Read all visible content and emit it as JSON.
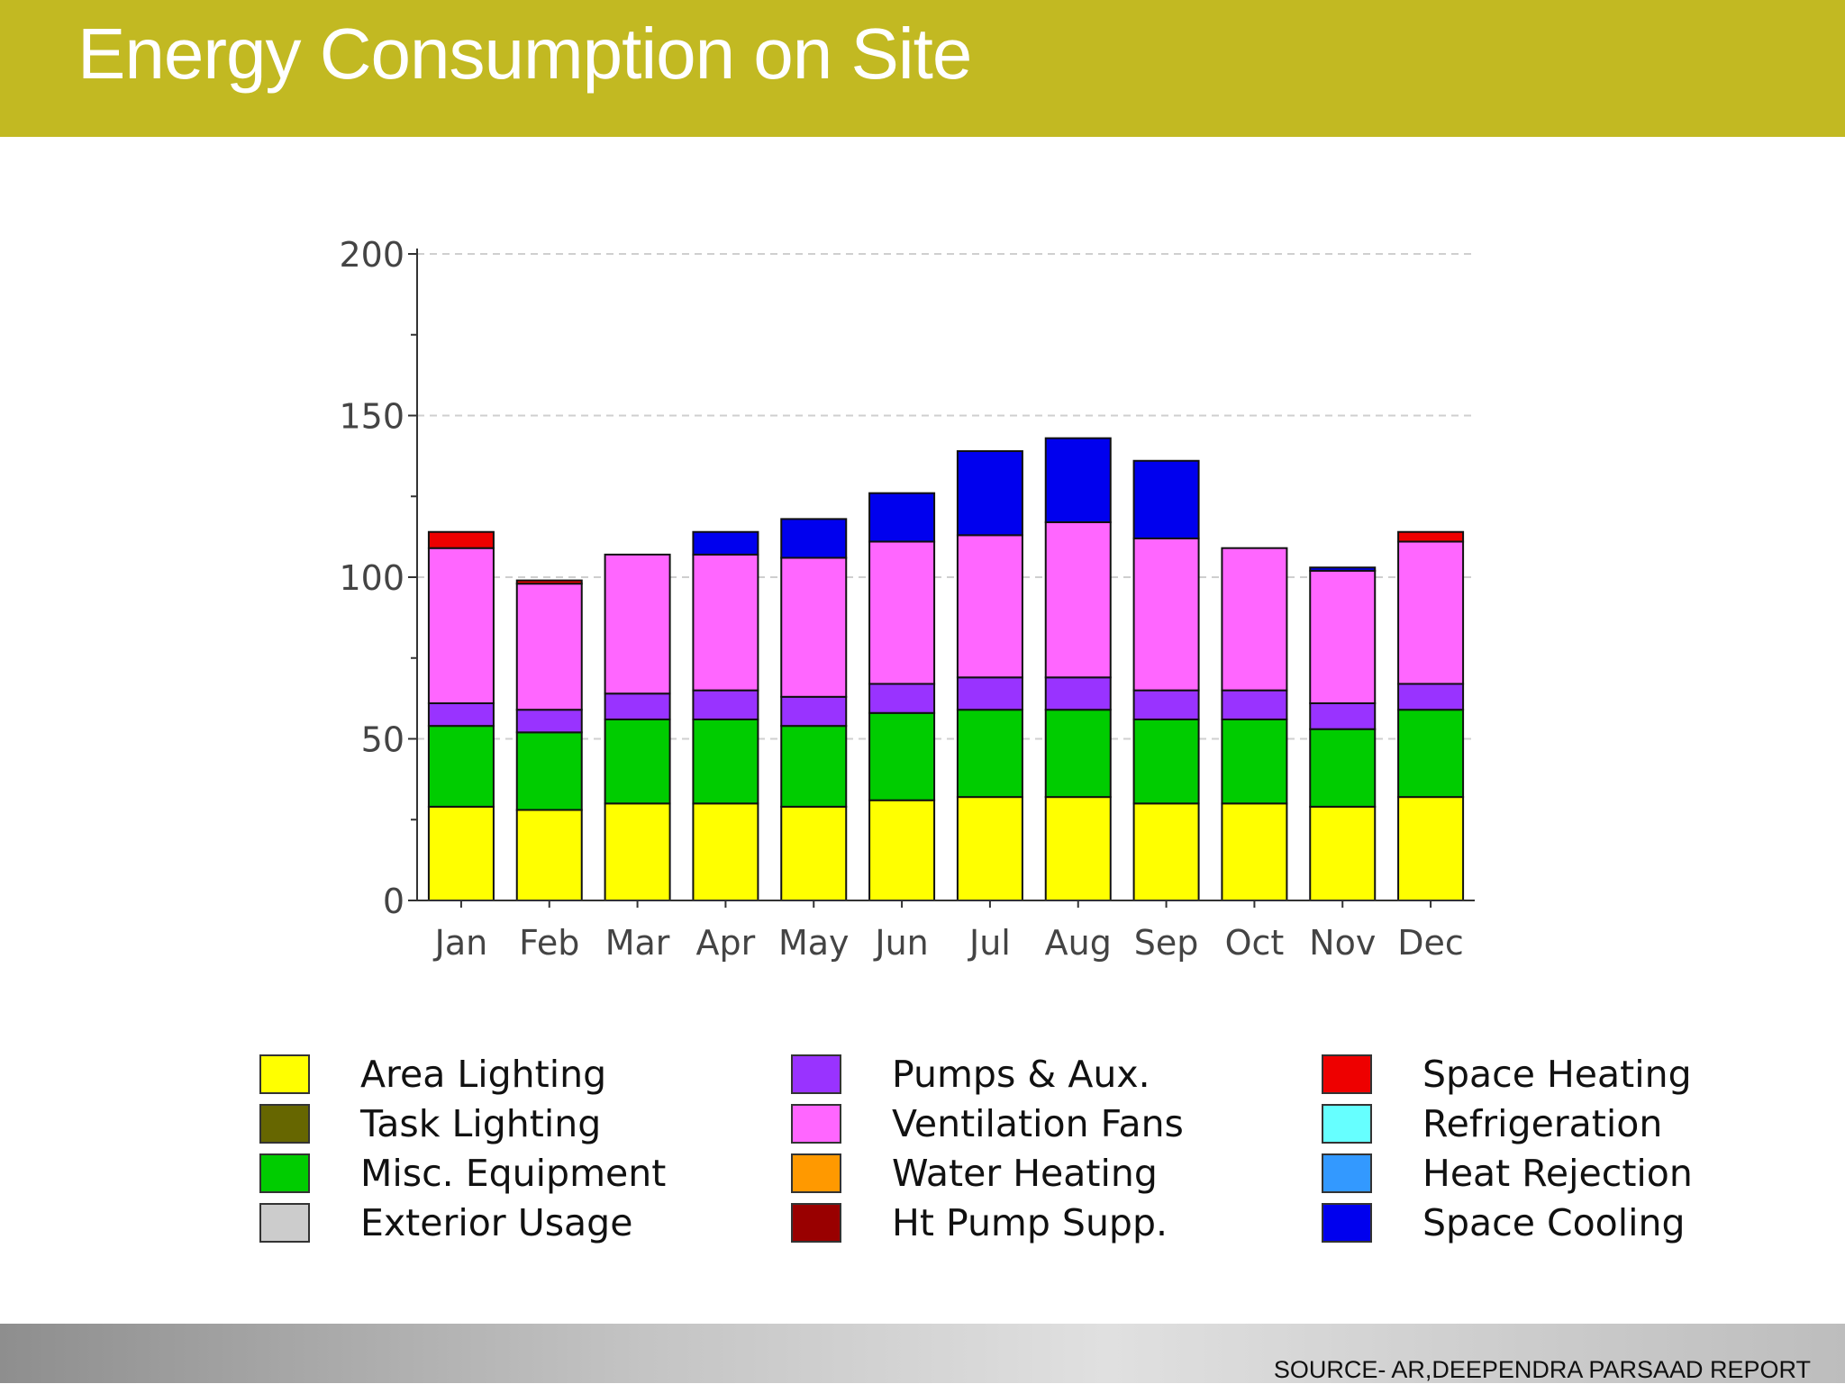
{
  "slide": {
    "title": "Energy Consumption on Site",
    "source": "SOURCE- AR,DEEPENDRA PARSAAD REPORT"
  },
  "colors": {
    "title_bar": "#c2b922"
  },
  "chart_data": {
    "type": "bar",
    "stacked": true,
    "title": "",
    "xlabel": "",
    "ylabel": "",
    "ylim": [
      0,
      200
    ],
    "yticks": [
      0,
      50,
      100,
      150,
      200
    ],
    "grid": true,
    "categories": [
      "Jan",
      "Feb",
      "Mar",
      "Apr",
      "May",
      "Jun",
      "Jul",
      "Aug",
      "Sep",
      "Oct",
      "Nov",
      "Dec"
    ],
    "series": [
      {
        "name": "Area Lighting",
        "color": "#ffff00",
        "values": [
          29,
          28,
          30,
          30,
          29,
          31,
          32,
          32,
          30,
          30,
          29,
          32
        ]
      },
      {
        "name": "Task Lighting",
        "color": "#666600",
        "values": [
          0,
          0,
          0,
          0,
          0,
          0,
          0,
          0,
          0,
          0,
          0,
          0
        ]
      },
      {
        "name": "Misc. Equipment",
        "color": "#00cc00",
        "values": [
          25,
          24,
          26,
          26,
          25,
          27,
          27,
          27,
          26,
          26,
          24,
          27
        ]
      },
      {
        "name": "Exterior Usage",
        "color": "#cccccc",
        "values": [
          0,
          0,
          0,
          0,
          0,
          0,
          0,
          0,
          0,
          0,
          0,
          0
        ]
      },
      {
        "name": "Pumps & Aux.",
        "color": "#9933ff",
        "values": [
          7,
          7,
          8,
          9,
          9,
          9,
          10,
          10,
          9,
          9,
          8,
          8
        ]
      },
      {
        "name": "Ventilation Fans",
        "color": "#ff66ff",
        "values": [
          48,
          39,
          43,
          42,
          43,
          44,
          44,
          48,
          47,
          44,
          41,
          44
        ]
      },
      {
        "name": "Water Heating",
        "color": "#ff9900",
        "values": [
          0,
          0,
          0,
          0,
          0,
          0,
          0,
          0,
          0,
          0,
          0,
          0
        ]
      },
      {
        "name": "Ht Pump Supp.",
        "color": "#990000",
        "values": [
          0,
          0,
          0,
          0,
          0,
          0,
          0,
          0,
          0,
          0,
          0,
          0
        ]
      },
      {
        "name": "Space Heating",
        "color": "#ee0000",
        "values": [
          5,
          1,
          0,
          0,
          0,
          0,
          0,
          0,
          0,
          0,
          0,
          3
        ]
      },
      {
        "name": "Refrigeration",
        "color": "#66ffff",
        "values": [
          0,
          0,
          0,
          0,
          0,
          0,
          0,
          0,
          0,
          0,
          0,
          0
        ]
      },
      {
        "name": "Heat Rejection",
        "color": "#3399ff",
        "values": [
          0,
          0,
          0,
          0,
          0,
          0,
          0,
          0,
          0,
          0,
          0,
          0
        ]
      },
      {
        "name": "Space Cooling",
        "color": "#0000ee",
        "values": [
          0,
          0,
          0,
          7,
          12,
          15,
          26,
          26,
          24,
          0,
          1,
          0
        ]
      }
    ]
  },
  "legend": {
    "columns": [
      [
        "Area Lighting",
        "Task Lighting",
        "Misc. Equipment",
        "Exterior Usage"
      ],
      [
        "Pumps & Aux.",
        "Ventilation Fans",
        "Water Heating",
        "Ht Pump Supp."
      ],
      [
        "Space Heating",
        "Refrigeration",
        "Heat Rejection",
        "Space Cooling"
      ]
    ]
  }
}
